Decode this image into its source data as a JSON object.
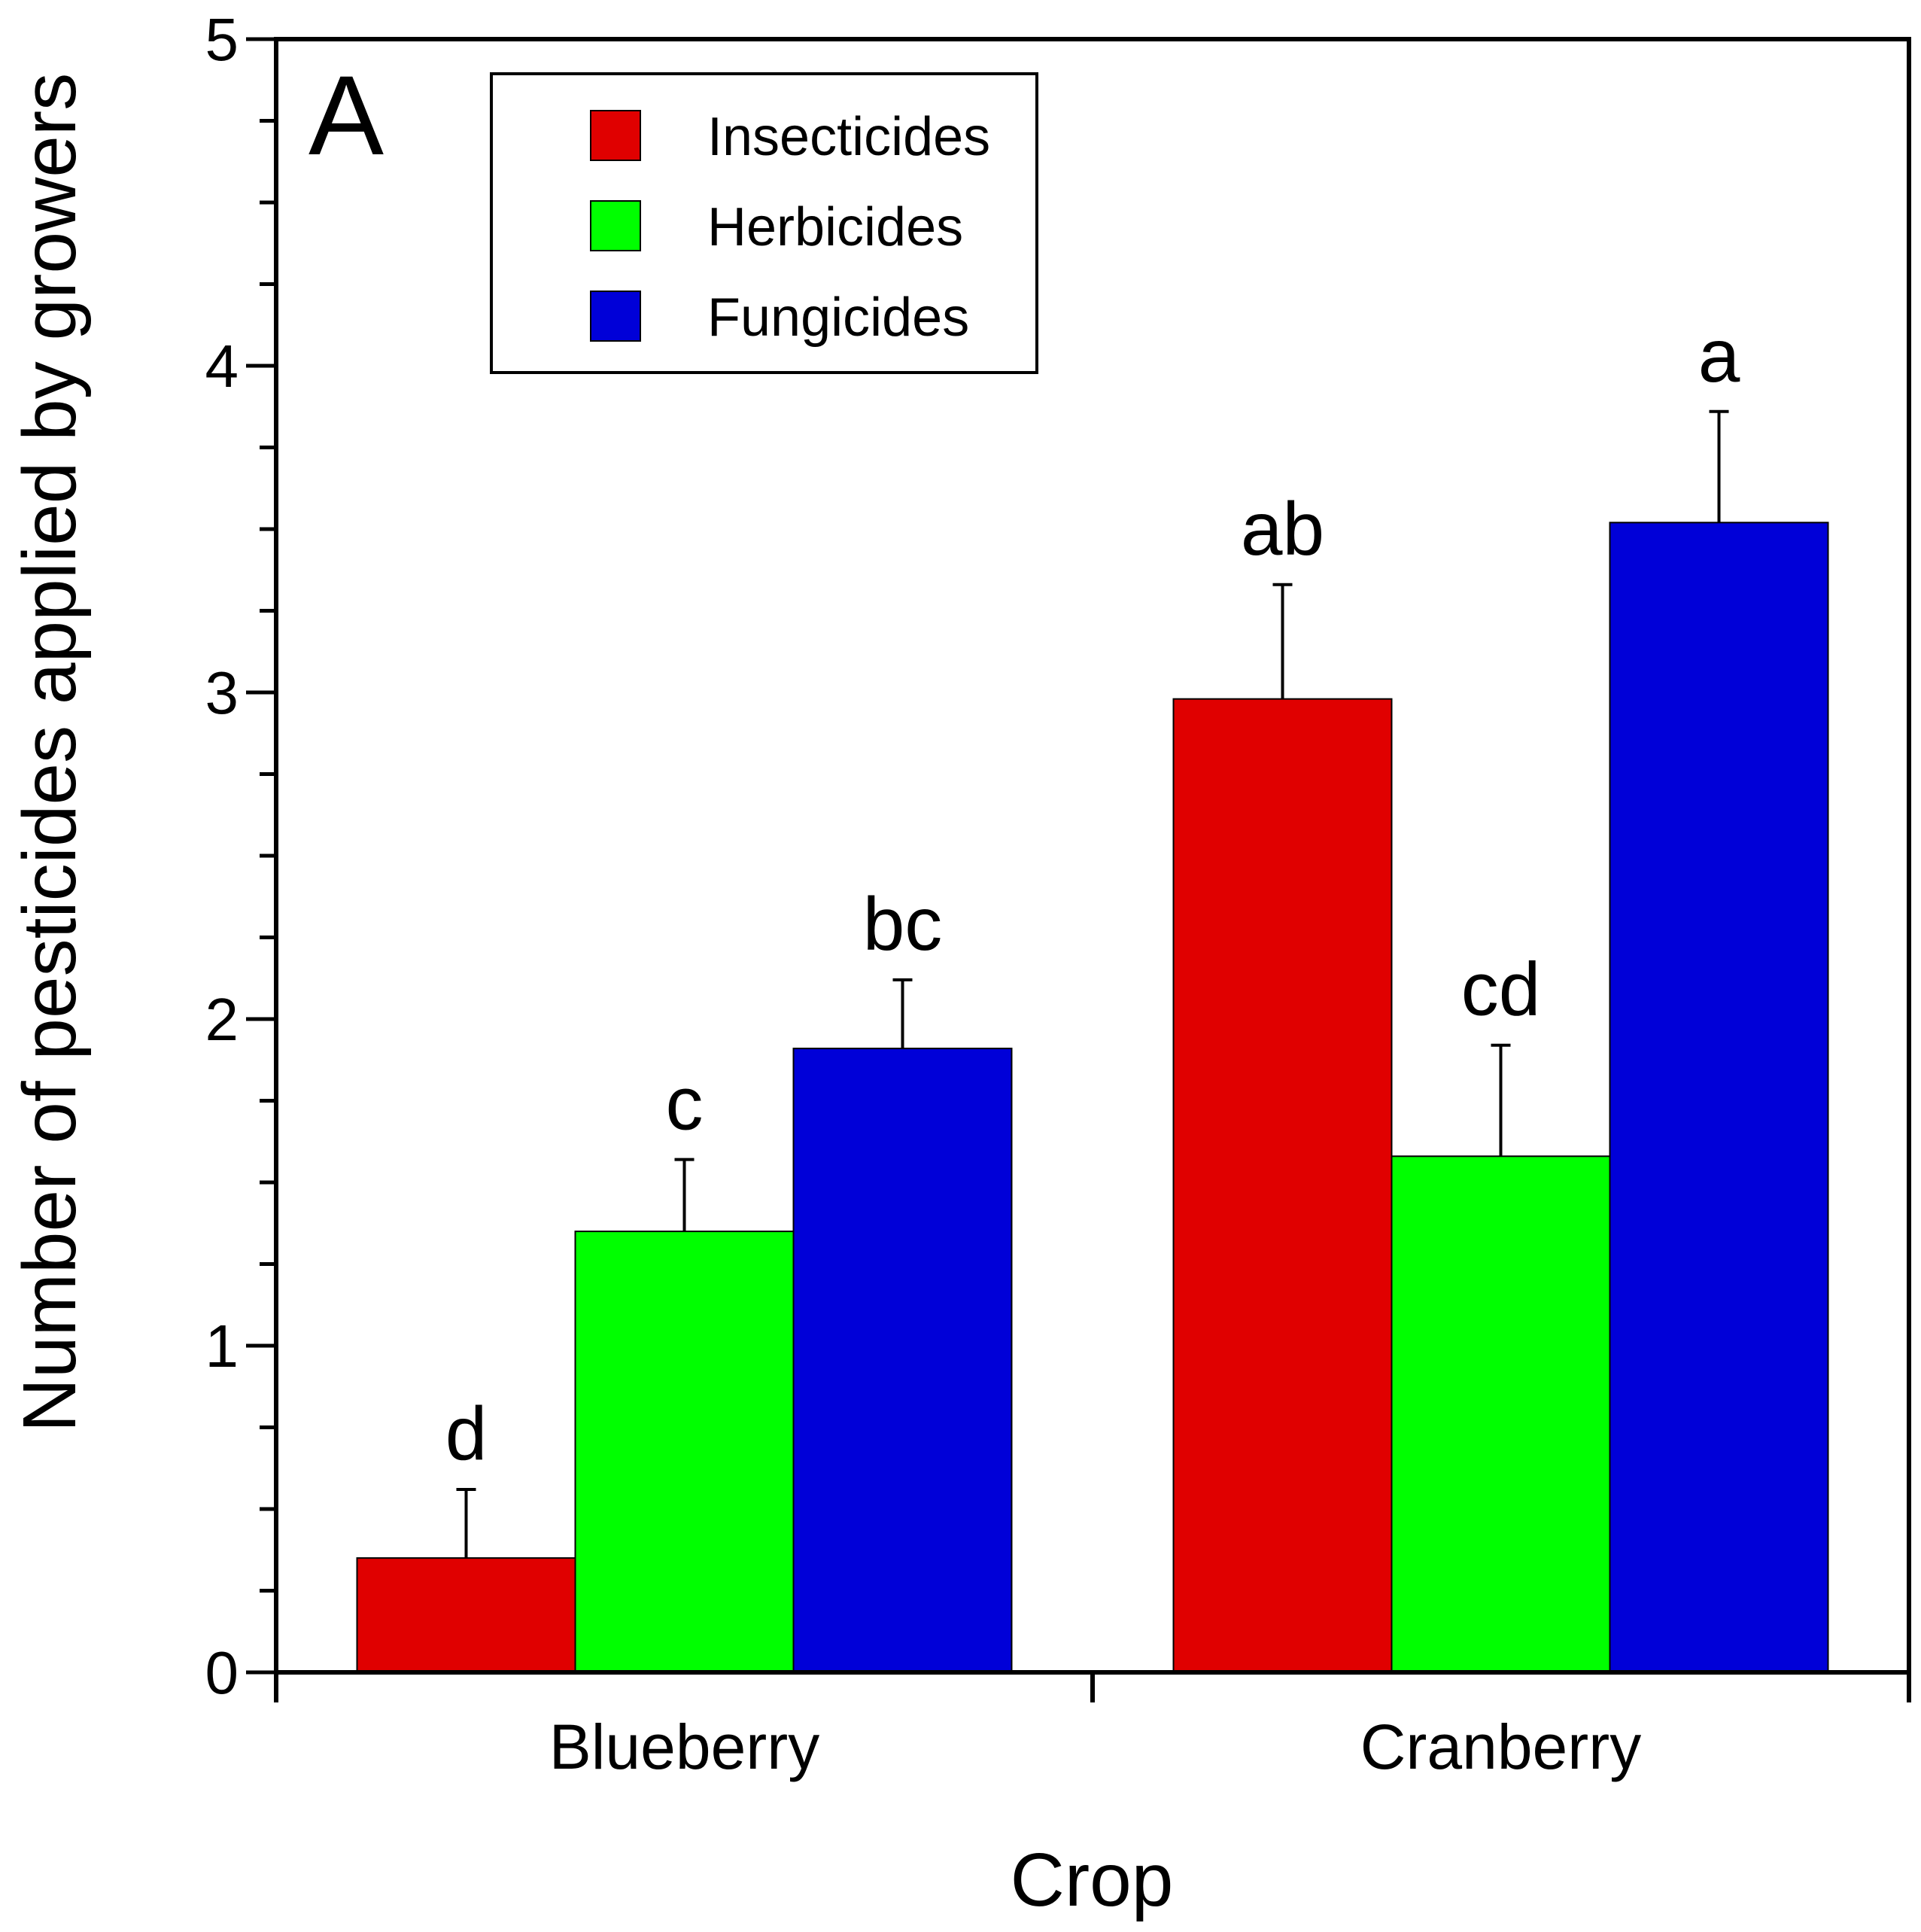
{
  "chart_data": {
    "type": "bar",
    "panel_label": "A",
    "xlabel": "Crop",
    "ylabel": "Number of pesticides applied by growers",
    "categories": [
      "Blueberry",
      "Cranberry"
    ],
    "ylim": [
      0,
      5
    ],
    "yticks": [
      0,
      1,
      2,
      3,
      4,
      5
    ],
    "legend_position": "top-left",
    "series": [
      {
        "name": "Insecticides",
        "color": "#e00000",
        "values": [
          0.35,
          2.98
        ],
        "errors": [
          0.21,
          0.35
        ],
        "letters": [
          "d",
          "ab"
        ]
      },
      {
        "name": "Herbicides",
        "color": "#00ff00",
        "values": [
          1.35,
          1.58
        ],
        "errors": [
          0.22,
          0.34
        ],
        "letters": [
          "c",
          "cd"
        ]
      },
      {
        "name": "Fungicides",
        "color": "#0000d8",
        "values": [
          1.91,
          3.52
        ],
        "errors": [
          0.21,
          0.34
        ],
        "letters": [
          "bc",
          "a"
        ]
      }
    ]
  }
}
